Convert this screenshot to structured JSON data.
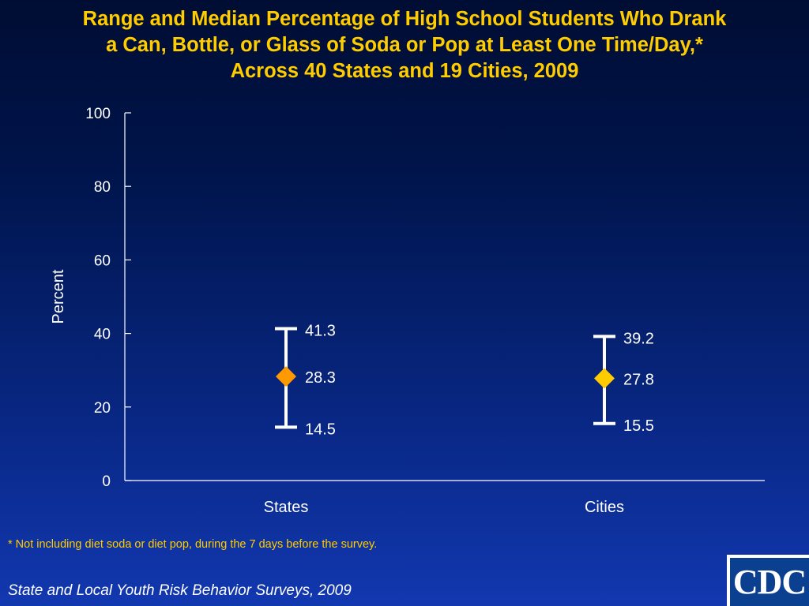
{
  "title_lines": [
    "Range and Median Percentage of High School Students Who Drank",
    "a Can, Bottle, or Glass of Soda or Pop at Least One Time/Day,*",
    "Across 40 States and 19 Cities, 2009"
  ],
  "footnote": "* Not including diet soda or diet pop, during the 7 days before the survey.",
  "source": "State and Local Youth Risk Behavior Surveys, 2009",
  "logo_text": "CDC",
  "colors": {
    "title": "#ffcc00",
    "axis": "#ffffff",
    "states_marker": "#ff9900",
    "cities_marker": "#ffcc00"
  },
  "chart_data": {
    "type": "range",
    "ylabel": "Percent",
    "xlabel": "",
    "ylim": [
      0,
      100
    ],
    "yticks": [
      0,
      20,
      40,
      60,
      80,
      100
    ],
    "categories": [
      "States",
      "Cities"
    ],
    "series": [
      {
        "values": [
          {
            "category": "States",
            "min": 14.5,
            "median": 28.3,
            "max": 41.3
          },
          {
            "category": "Cities",
            "min": 15.5,
            "median": 27.8,
            "max": 39.2
          }
        ]
      }
    ],
    "labels": {
      "States": {
        "min": "14.5",
        "median": "28.3",
        "max": "41.3"
      },
      "Cities": {
        "min": "15.5",
        "median": "27.8",
        "max": "39.2"
      }
    },
    "grid": false,
    "legend": "none"
  }
}
